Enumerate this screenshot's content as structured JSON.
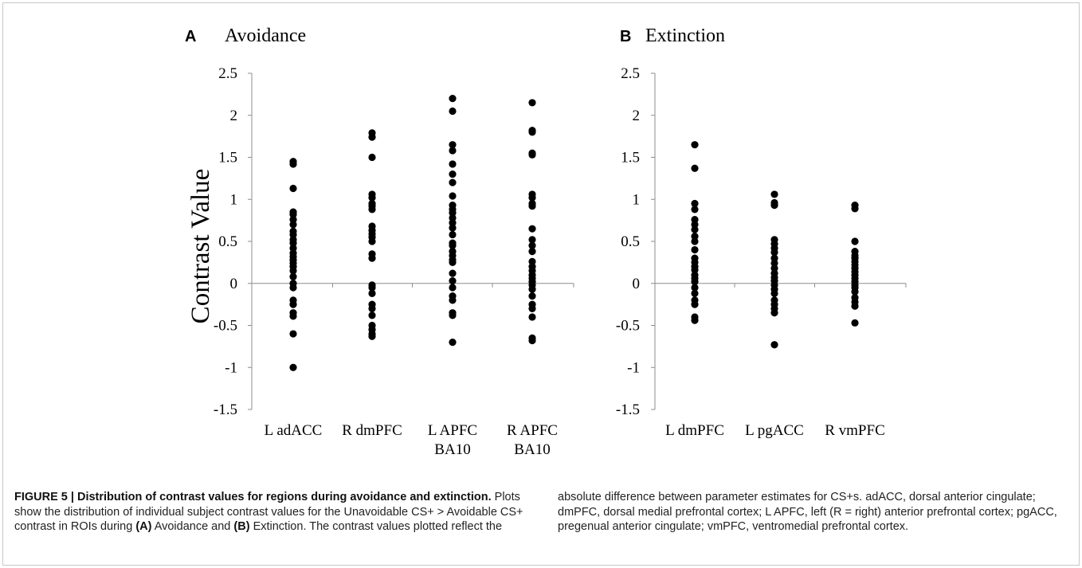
{
  "chart_data": [
    {
      "type": "scatter",
      "panel_letter": "A",
      "title": "Avoidance",
      "ylabel": "Contrast Value",
      "ylim": [
        -1.5,
        2.5
      ],
      "yticks": [
        "2.5",
        "2",
        "1.5",
        "1",
        "0.5",
        "0",
        "-0.5",
        "-1",
        "-1.5"
      ],
      "categories": [
        [
          "L adACC"
        ],
        [
          "R dmPFC"
        ],
        [
          "L APFC",
          "BA10"
        ],
        [
          "R APFC",
          "BA10"
        ]
      ],
      "series": [
        {
          "values": [
            1.45,
            1.42,
            1.13,
            0.85,
            0.82,
            0.76,
            0.7,
            0.62,
            0.58,
            0.52,
            0.48,
            0.42,
            0.36,
            0.32,
            0.28,
            0.24,
            0.2,
            0.15,
            0.08,
            0.0,
            -0.05,
            -0.2,
            -0.25,
            -0.35,
            -0.39,
            -0.6,
            -1.0
          ]
        },
        {
          "values": [
            1.79,
            1.74,
            1.5,
            1.06,
            1.02,
            0.95,
            0.92,
            0.88,
            0.68,
            0.63,
            0.59,
            0.55,
            0.5,
            0.35,
            0.3,
            -0.02,
            -0.05,
            -0.12,
            -0.25,
            -0.3,
            -0.38,
            -0.5,
            -0.55,
            -0.6,
            -0.63
          ]
        },
        {
          "values": [
            2.2,
            2.05,
            1.65,
            1.58,
            1.42,
            1.3,
            1.2,
            1.04,
            0.93,
            0.88,
            0.84,
            0.78,
            0.72,
            0.66,
            0.58,
            0.48,
            0.45,
            0.38,
            0.33,
            0.28,
            0.25,
            0.12,
            0.03,
            -0.05,
            -0.15,
            -0.2,
            -0.35,
            -0.38,
            -0.7
          ]
        },
        {
          "values": [
            2.15,
            1.82,
            1.8,
            1.55,
            1.53,
            1.06,
            1.02,
            0.95,
            0.92,
            0.65,
            0.52,
            0.45,
            0.38,
            0.26,
            0.2,
            0.15,
            0.1,
            0.06,
            0.02,
            -0.02,
            -0.07,
            -0.15,
            -0.25,
            -0.3,
            -0.4,
            -0.65,
            -0.68
          ]
        }
      ]
    },
    {
      "type": "scatter",
      "panel_letter": "B",
      "title": "Extinction",
      "ylim": [
        -1.5,
        2.5
      ],
      "yticks": [
        "2.5",
        "2",
        "1.5",
        "1",
        "0.5",
        "0",
        "-0.5",
        "-1",
        "-1.5"
      ],
      "categories": [
        [
          "L dmPFC"
        ],
        [
          "L pgACC"
        ],
        [
          "R vmPFC"
        ]
      ],
      "series": [
        {
          "values": [
            1.65,
            1.37,
            0.95,
            0.88,
            0.76,
            0.7,
            0.64,
            0.56,
            0.5,
            0.4,
            0.3,
            0.25,
            0.2,
            0.16,
            0.1,
            0.06,
            0.02,
            -0.05,
            -0.12,
            -0.2,
            -0.25,
            -0.4,
            -0.44
          ]
        },
        {
          "values": [
            1.06,
            0.96,
            0.93,
            0.52,
            0.47,
            0.42,
            0.37,
            0.3,
            0.24,
            0.18,
            0.12,
            0.07,
            0.03,
            -0.02,
            -0.07,
            -0.12,
            -0.2,
            -0.25,
            -0.3,
            -0.35,
            -0.73
          ]
        },
        {
          "values": [
            0.93,
            0.89,
            0.5,
            0.38,
            0.33,
            0.3,
            0.26,
            0.22,
            0.18,
            0.14,
            0.1,
            0.06,
            0.02,
            -0.02,
            -0.05,
            -0.1,
            -0.17,
            -0.22,
            -0.27,
            -0.47
          ]
        }
      ]
    }
  ],
  "caption": {
    "left": [
      {
        "text": "FIGURE 5 | Distribution of contrast values for regions during avoidance and extinction.",
        "bold": true
      },
      {
        "text": " Plots show the distribution of individual subject contrast values for the Unavoidable CS+ > Avoidable CS+ contrast in ROIs during ",
        "bold": false
      },
      {
        "text": "(A)",
        "bold": true
      },
      {
        "text": " Avoidance and ",
        "bold": false
      },
      {
        "text": "(B)",
        "bold": true
      },
      {
        "text": " Extinction. The contrast values plotted reflect the",
        "bold": false
      }
    ],
    "right": "absolute difference between parameter estimates for CS+s. adACC, dorsal anterior cingulate; dmPFC, dorsal medial prefrontal cortex; L APFC, left (R = right) anterior prefrontal cortex; pgACC, pregenual anterior cingulate; vmPFC, ventromedial prefrontal cortex."
  }
}
